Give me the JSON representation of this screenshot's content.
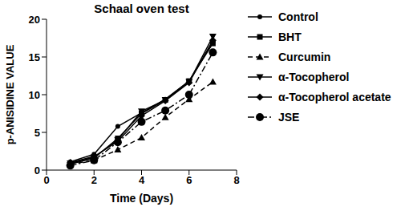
{
  "chart_data": {
    "type": "line",
    "title": "Schaal oven test",
    "x_label": "Time (Days)",
    "y_label": "p-ANISIDINE VALUE",
    "x": [
      1,
      2,
      3,
      4,
      5,
      6,
      7
    ],
    "xlim": [
      0,
      8
    ],
    "xticks": [
      0,
      2,
      4,
      6,
      8
    ],
    "ylim": [
      0,
      20
    ],
    "yticks": [
      0,
      5,
      10,
      15,
      20
    ],
    "grid": false,
    "legend": "right",
    "series": [
      {
        "name": "Control",
        "color": "#000000",
        "marker": "circle",
        "line_style": "solid",
        "values": [
          1.1,
          2.1,
          5.8,
          7.6,
          9.4,
          11.8,
          17.0
        ]
      },
      {
        "name": "BHT",
        "color": "#000000",
        "marker": "square",
        "line_style": "solid",
        "values": [
          0.8,
          1.6,
          4.2,
          7.5,
          9.3,
          11.8,
          16.8
        ]
      },
      {
        "name": "Curcumin",
        "color": "#000000",
        "marker": "triangle",
        "line_style": "dashed",
        "values": [
          0.8,
          1.3,
          2.7,
          4.3,
          7.0,
          9.4,
          11.7
        ]
      },
      {
        "name": "α-Tocopherol",
        "color": "#000000",
        "marker": "triangle_down",
        "line_style": "solid",
        "values": [
          0.9,
          1.7,
          4.0,
          7.8,
          9.3,
          11.7,
          17.7
        ]
      },
      {
        "name": "α-Tocopherol acetate",
        "color": "#000000",
        "marker": "diamond",
        "line_style": "solid",
        "values": [
          1.0,
          1.8,
          3.8,
          7.2,
          9.2,
          11.6,
          17.2
        ]
      },
      {
        "name": "JSE",
        "color": "#000000",
        "marker": "circle_large",
        "line_style": "dashdot",
        "values": [
          0.6,
          1.3,
          3.7,
          6.4,
          7.9,
          10.0,
          15.6
        ]
      }
    ]
  }
}
